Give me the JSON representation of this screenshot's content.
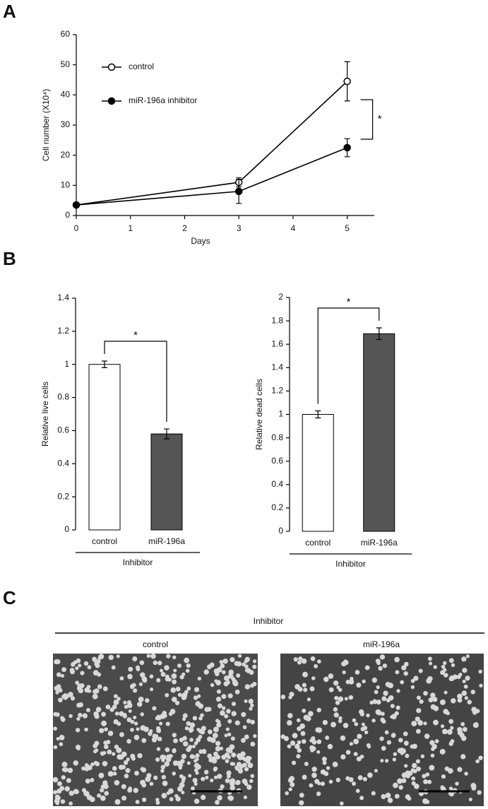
{
  "panel_labels": [
    "A",
    "B",
    "C"
  ],
  "chart_data": [
    {
      "type": "line",
      "x": [
        0,
        3,
        5
      ],
      "xlim": [
        0,
        5.5
      ],
      "xticks": [
        0,
        1,
        2,
        3,
        4,
        5
      ],
      "ylim": [
        0,
        60
      ],
      "yticks": [
        0,
        10,
        20,
        30,
        40,
        50,
        60
      ],
      "xlabel": "Days",
      "ylabel": "Cell number (X10⁴)",
      "legend": "top-left",
      "annotation": "*",
      "series": [
        {
          "name": "control",
          "color": "#000000",
          "fill": "#ffffff",
          "values": [
            3.5,
            11,
            44.5
          ],
          "errors": [
            0.5,
            1.5,
            6.5
          ]
        },
        {
          "name": "miR-196a inhibitor",
          "color": "#000000",
          "fill": "#000000",
          "values": [
            3.5,
            8,
            22.5
          ],
          "errors": [
            0.5,
            4,
            3
          ]
        }
      ]
    },
    {
      "type": "bar",
      "categories": [
        "control",
        "miR-196a"
      ],
      "group_label": "Inhibitor",
      "values": [
        1.0,
        0.58
      ],
      "errors": [
        0.02,
        0.03
      ],
      "colors": [
        "#ffffff",
        "#555555"
      ],
      "ylim": [
        0,
        1.4
      ],
      "yticks": [
        0,
        0.2,
        0.4,
        0.6,
        0.8,
        1,
        1.2,
        1.4
      ],
      "ylabel": "Relative live cells",
      "annotation": "*"
    },
    {
      "type": "bar",
      "categories": [
        "control",
        "miR-196a"
      ],
      "group_label": "Inhibitor",
      "values": [
        1.0,
        1.69
      ],
      "errors": [
        0.03,
        0.05
      ],
      "colors": [
        "#ffffff",
        "#555555"
      ],
      "ylim": [
        0,
        2
      ],
      "yticks": [
        0,
        0.2,
        0.4,
        0.6,
        0.8,
        1,
        1.2,
        1.4,
        1.6,
        1.8,
        2
      ],
      "ylabel": "Relative dead cells",
      "annotation": "*"
    }
  ],
  "panel_c": {
    "group_label": "Inhibitor",
    "images": [
      "control",
      "miR-196a"
    ]
  }
}
